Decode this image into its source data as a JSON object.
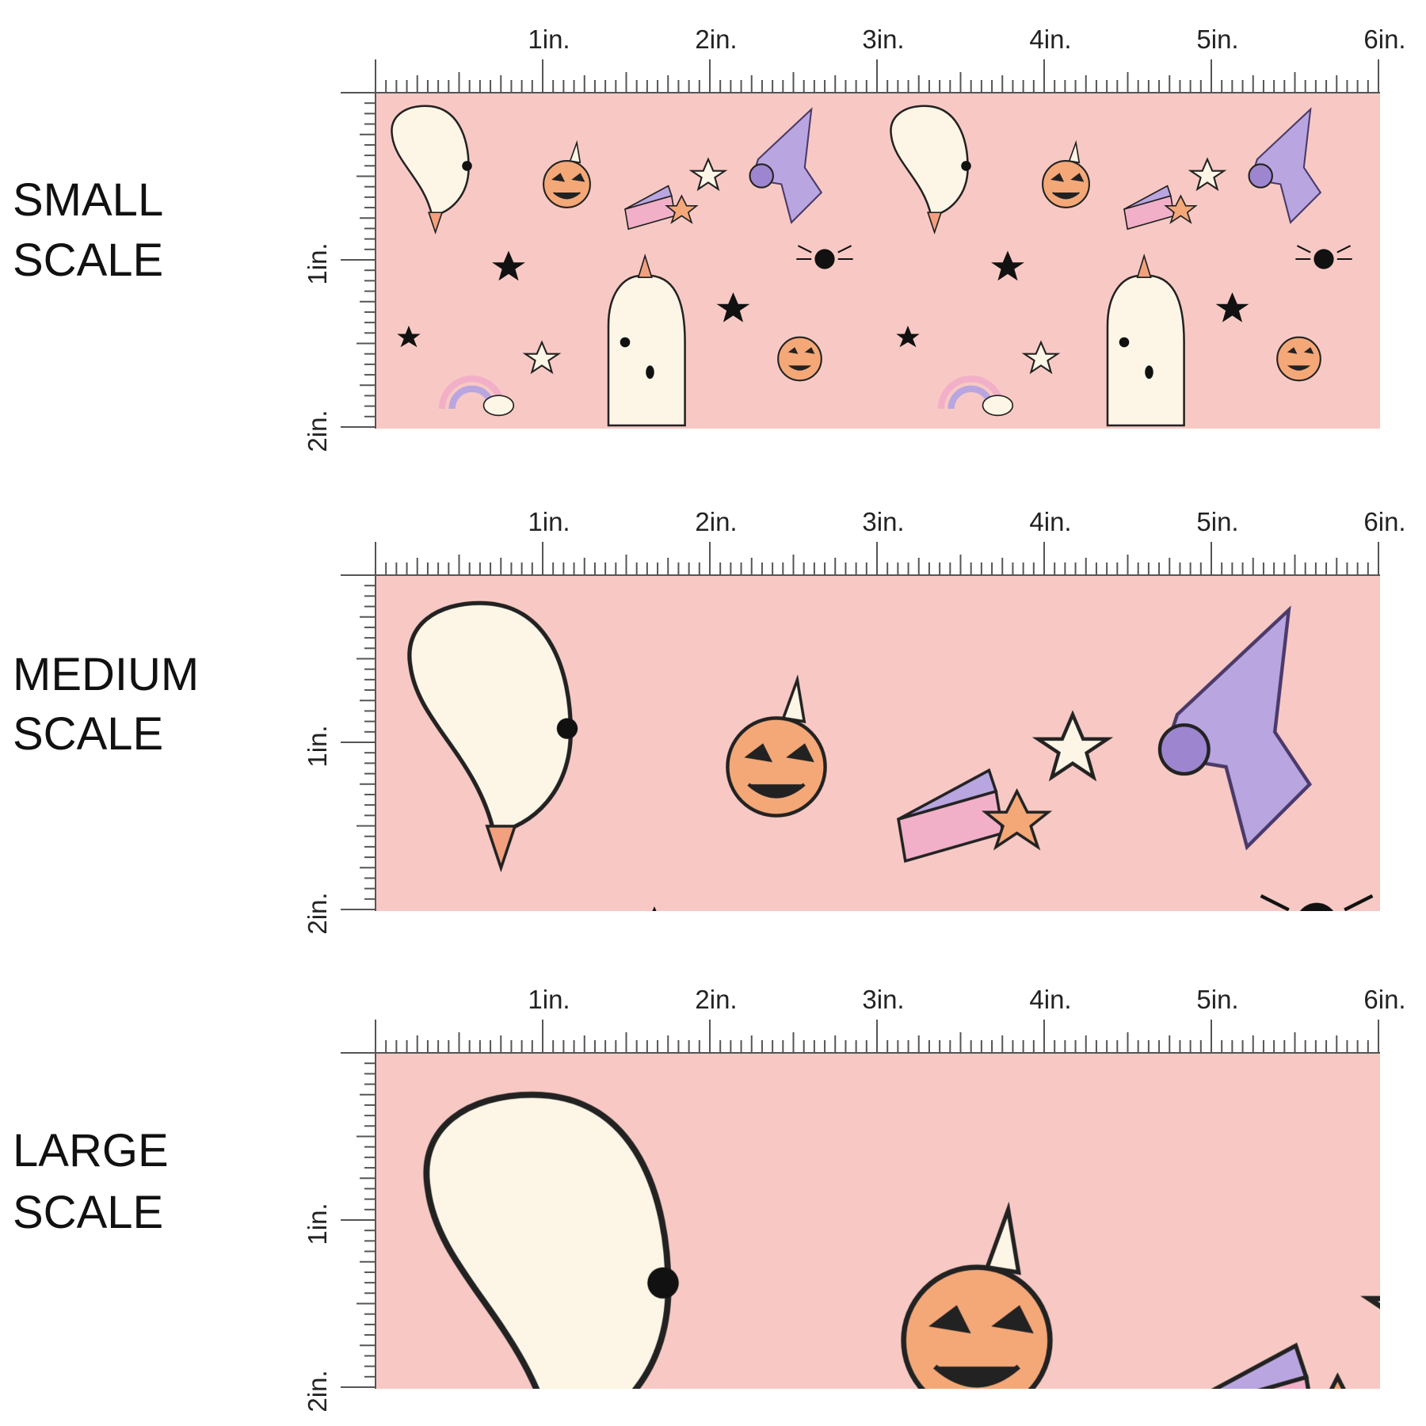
{
  "sections": [
    {
      "label": [
        "SMALL",
        "SCALE"
      ]
    },
    {
      "label": [
        "MEDIUM",
        "SCALE"
      ]
    },
    {
      "label": [
        "LARGE",
        "SCALE"
      ]
    }
  ],
  "ruler": {
    "horizontal": [
      "1in.",
      "2in.",
      "3in.",
      "4in.",
      "5in.",
      "6in."
    ],
    "vertical": [
      "1in.",
      "2in."
    ]
  }
}
